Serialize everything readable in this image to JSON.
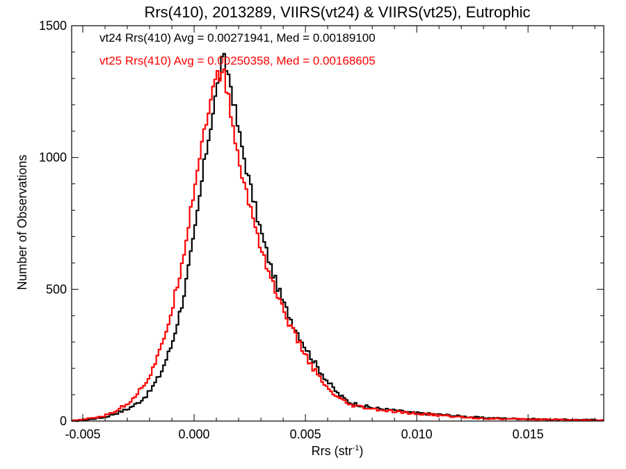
{
  "chart_data": {
    "type": "line",
    "subtype": "step-histogram",
    "title": "Rrs(410), 2013289, VIIRS(vt24) & VIIRS(vt25), Eutrophic",
    "xlabel": "Rrs (str",
    "xlabel_sup": "-1",
    "xlabel_close": ")",
    "ylabel": "Number of Observations",
    "xlim": [
      -0.0055,
      0.0184
    ],
    "ylim": [
      0,
      1500
    ],
    "grid": false,
    "x_ticks": [
      -0.005,
      0.0,
      0.005,
      0.01,
      0.015
    ],
    "x_tick_labels": [
      "-0.005",
      "0.000",
      "0.005",
      "0.010",
      "0.015"
    ],
    "y_ticks": [
      0,
      500,
      1000,
      1500
    ],
    "y_tick_labels": [
      "0",
      "500",
      "1000",
      "1500"
    ],
    "legend_placement": "top-left",
    "annotations": [
      {
        "text": "vt24 Rrs(410) Avg = 0.00271941, Med = 0.00189100",
        "color": "#000000"
      },
      {
        "text": "vt25 Rrs(410) Avg = 0.00250358, Med = 0.00168605",
        "color": "#ff0000"
      }
    ],
    "series": [
      {
        "color": "#000000",
        "x": [
          -0.0055,
          -0.005,
          -0.004,
          -0.0035,
          -0.003,
          -0.0025,
          -0.002,
          -0.0015,
          -0.001,
          -0.0005,
          0.0,
          0.0005,
          0.001,
          0.0013,
          0.0016,
          0.002,
          0.0025,
          0.003,
          0.0035,
          0.004,
          0.0045,
          0.005,
          0.0055,
          0.006,
          0.0065,
          0.007,
          0.008,
          0.009,
          0.01,
          0.011,
          0.012,
          0.013,
          0.014,
          0.015,
          0.016,
          0.017,
          0.0184
        ],
        "y": [
          0,
          3,
          15,
          30,
          45,
          70,
          110,
          180,
          290,
          460,
          700,
          1000,
          1250,
          1380,
          1300,
          1100,
          900,
          720,
          570,
          450,
          360,
          280,
          210,
          150,
          100,
          70,
          50,
          40,
          30,
          25,
          18,
          12,
          10,
          8,
          6,
          5,
          4
        ]
      },
      {
        "color": "#ff0000",
        "x": [
          -0.0055,
          -0.005,
          -0.004,
          -0.0035,
          -0.003,
          -0.0025,
          -0.002,
          -0.0015,
          -0.001,
          -0.0005,
          0.0,
          0.0005,
          0.001,
          0.0013,
          0.0016,
          0.002,
          0.0025,
          0.003,
          0.0035,
          0.004,
          0.0045,
          0.005,
          0.0055,
          0.006,
          0.0065,
          0.007,
          0.008,
          0.009,
          0.01,
          0.011,
          0.012,
          0.013,
          0.014,
          0.015,
          0.016,
          0.017,
          0.0184
        ],
        "y": [
          0,
          5,
          20,
          40,
          65,
          110,
          170,
          270,
          420,
          620,
          880,
          1130,
          1300,
          1330,
          1200,
          980,
          820,
          660,
          530,
          420,
          330,
          250,
          180,
          120,
          85,
          60,
          45,
          35,
          28,
          22,
          15,
          10,
          8,
          7,
          5,
          4,
          3
        ]
      }
    ]
  }
}
